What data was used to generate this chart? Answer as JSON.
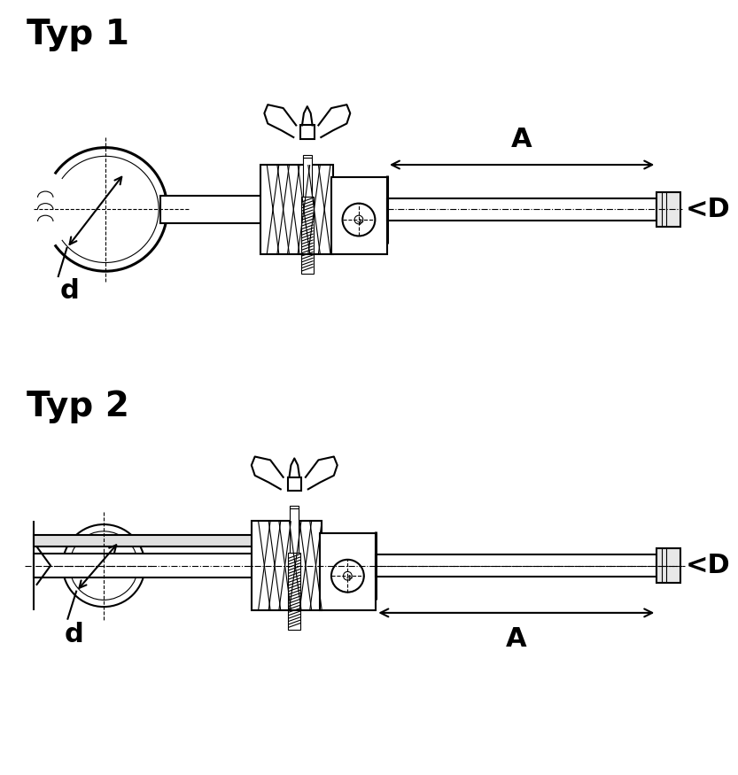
{
  "title1": "Typ 1",
  "title2": "Typ 2",
  "label_d": "d",
  "label_A": "A",
  "label_D": "<D",
  "bg_color": "#ffffff",
  "line_color": "#000000",
  "title_fontsize": 28,
  "label_fontsize": 20,
  "dim_fontsize": 22
}
